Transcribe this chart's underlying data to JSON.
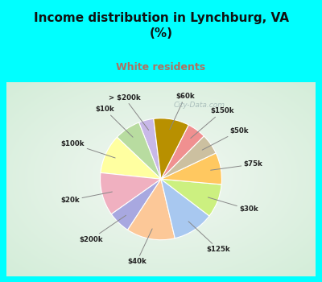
{
  "title": "Income distribution in Lynchburg, VA\n(%)",
  "subtitle": "White residents",
  "title_color": "#111111",
  "subtitle_color": "#b07060",
  "bg_cyan": "#00ffff",
  "watermark": "City-Data.com",
  "labels": [
    "> $200k",
    "$10k",
    "$100k",
    "$20k",
    "$200k",
    "$40k",
    "$125k",
    "$30k",
    "$75k",
    "$50k",
    "$150k",
    "$60k"
  ],
  "values": [
    4.0,
    7.0,
    10.5,
    11.5,
    6.0,
    13.0,
    11.0,
    9.0,
    8.5,
    5.5,
    5.0,
    9.5
  ],
  "colors": [
    "#c8b8e8",
    "#b8dca0",
    "#ffffa0",
    "#f0b0c0",
    "#a8a8e0",
    "#fcc898",
    "#a8c8f0",
    "#ccf080",
    "#ffc860",
    "#ccc0a0",
    "#f09090",
    "#b89000"
  ],
  "label_color": "#222222",
  "startangle": 97
}
